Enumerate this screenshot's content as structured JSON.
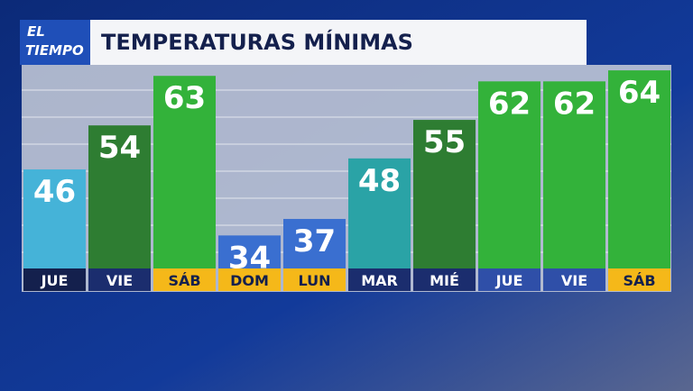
{
  "logo": [
    "EL",
    "TIEMPO"
  ],
  "chart_data": {
    "type": "bar",
    "title": "TEMPERATURAS MÍNIMAS",
    "categories": [
      "JUE",
      "VIE",
      "SÁB",
      "DOM",
      "LUN",
      "MAR",
      "MIÉ",
      "JUE",
      "VIE",
      "SÁB"
    ],
    "values": [
      46,
      54,
      63,
      34,
      37,
      48,
      55,
      62,
      62,
      64
    ],
    "colors": [
      "#45b3d8",
      "#2e7d32",
      "#33b23a",
      "#3a6fd0",
      "#3a6fd0",
      "#2aa3a6",
      "#2e7d32",
      "#33b23a",
      "#33b23a",
      "#33b23a"
    ],
    "label_colors": [
      "#14204d",
      "#1b2d6e",
      "#f5b819",
      "#f5b819",
      "#f5b819",
      "#1b2d6e",
      "#1b2d6e",
      "#2f4fa8",
      "#2f4fa8",
      "#f5b819"
    ],
    "ylim": [
      28,
      65
    ]
  }
}
